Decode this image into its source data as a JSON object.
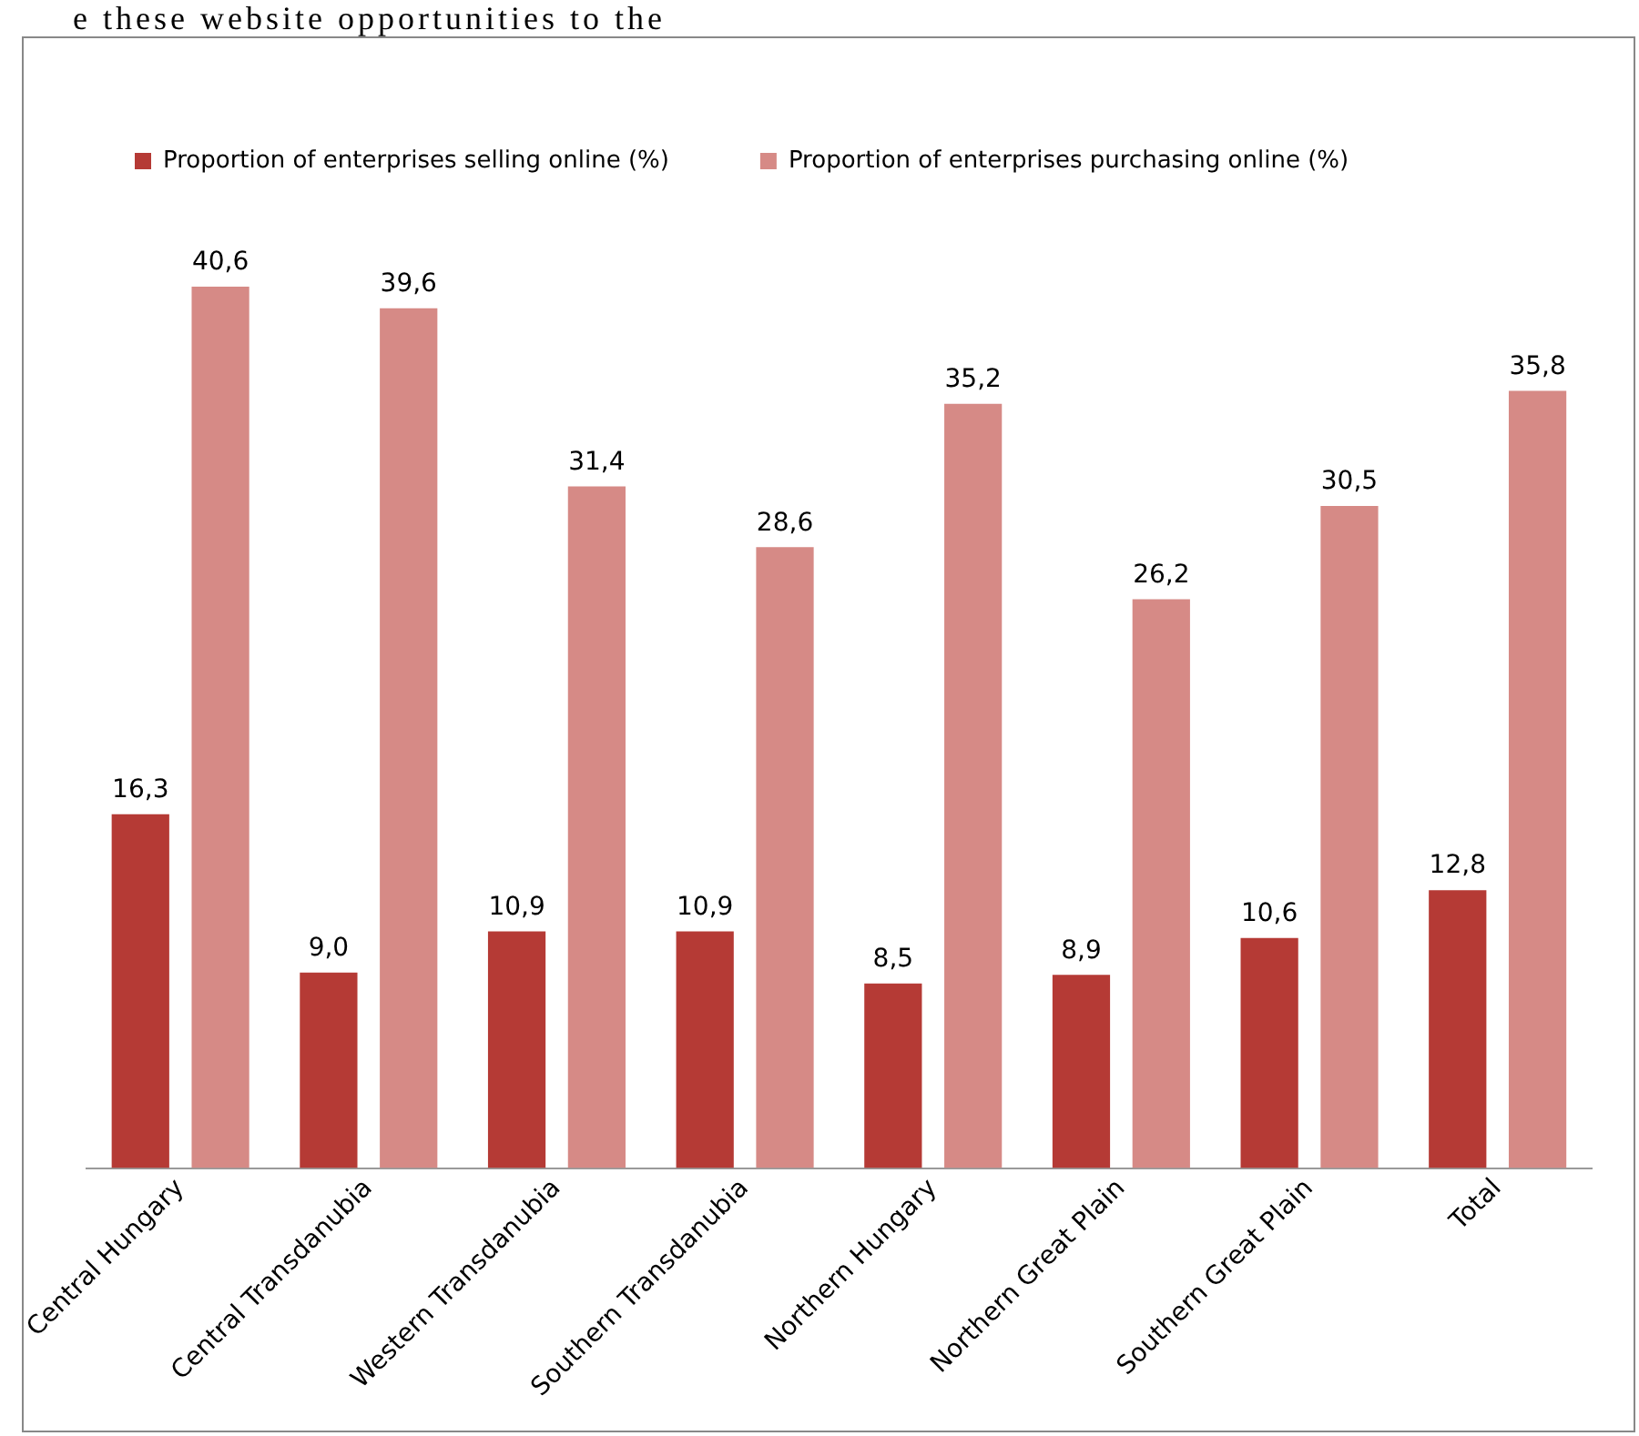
{
  "chart_data": {
    "type": "bar",
    "categories": [
      "Central Hungary",
      "Central Transdanubia",
      "Western Transdanubia",
      "Southern Transdanubia",
      "Northern Hungary",
      "Northern Great Plain",
      "Southern Great Plain",
      "Total"
    ],
    "series": [
      {
        "name": "Proportion of enterprises selling online (%)",
        "color": "#b53a35",
        "values": [
          16.3,
          9.0,
          10.9,
          10.9,
          8.5,
          8.9,
          10.6,
          12.8
        ],
        "value_labels": [
          "16,3",
          "9,0",
          "10,9",
          "10,9",
          "8,5",
          "8,9",
          "10,6",
          "12,8"
        ]
      },
      {
        "name": "Proportion of enterprises purchasing online (%)",
        "color": "#d68a86",
        "values": [
          40.6,
          39.6,
          31.4,
          28.6,
          35.2,
          26.2,
          30.5,
          35.8
        ],
        "value_labels": [
          "40,6",
          "39,6",
          "31,4",
          "28,6",
          "35,2",
          "26,2",
          "30,5",
          "35,8"
        ]
      }
    ],
    "annotations": [
      "e these website opportunities to the"
    ],
    "legend": "top",
    "grid": false,
    "tick_labels": "x"
  }
}
